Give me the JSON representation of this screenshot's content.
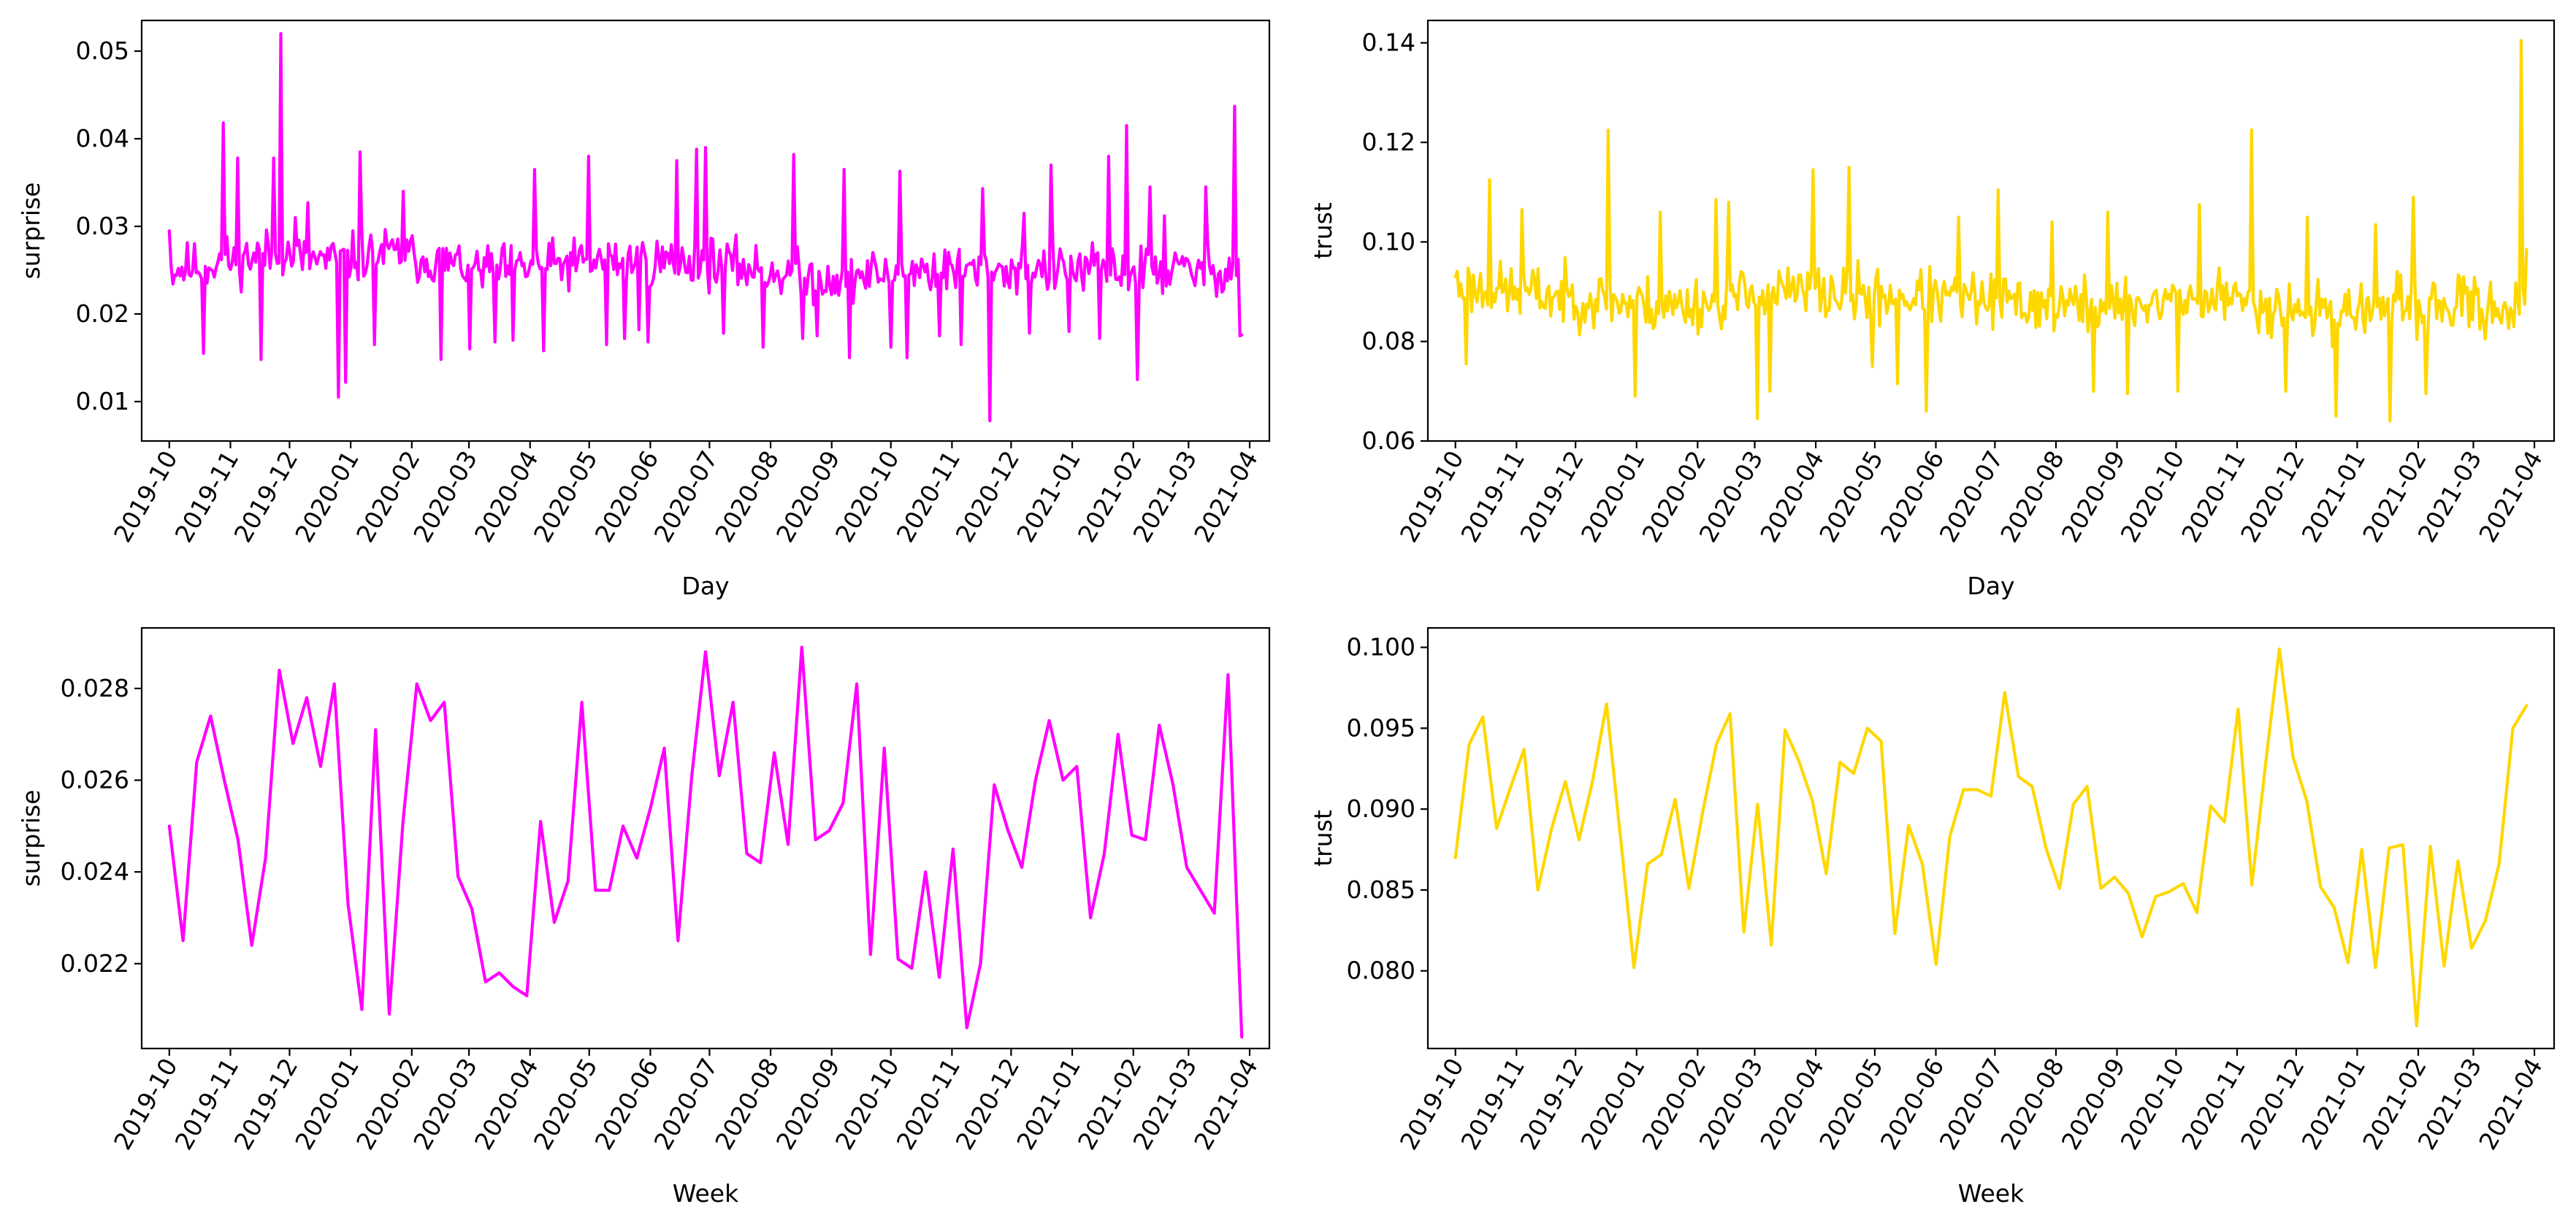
{
  "colors": {
    "surprise": "#ff00ff",
    "trust": "#ffd700"
  },
  "date_ticks": [
    "2019-10",
    "2019-11",
    "2019-12",
    "2020-01",
    "2020-02",
    "2020-03",
    "2020-04",
    "2020-05",
    "2020-06",
    "2020-07",
    "2020-08",
    "2020-09",
    "2020-10",
    "2020-11",
    "2020-12",
    "2021-01",
    "2021-02",
    "2021-03",
    "2021-04"
  ],
  "chart_data": [
    {
      "id": "daily-surprise",
      "type": "line",
      "xlabel": "Day",
      "ylabel": "surprise",
      "color_key": "surprise",
      "ylim": [
        0.0055,
        0.0535
      ],
      "yticks": [
        0.01,
        0.02,
        0.03,
        0.04,
        0.05
      ],
      "ytick_labels": [
        "0.01",
        "0.02",
        "0.03",
        "0.04",
        "0.05"
      ],
      "x_range": [
        "2019-10-01",
        "2021-03-28"
      ],
      "seed": 11,
      "base": [
        [
          0,
          0.025
        ],
        [
          60,
          0.027
        ],
        [
          90,
          0.026
        ],
        [
          120,
          0.027
        ],
        [
          180,
          0.025
        ],
        [
          240,
          0.026
        ],
        [
          300,
          0.026
        ],
        [
          360,
          0.024
        ],
        [
          420,
          0.025
        ],
        [
          545,
          0.025
        ]
      ],
      "noise": 0.0042,
      "peaks": [
        [
          0,
          0.0295
        ],
        [
          19,
          0.0155
        ],
        [
          30,
          0.0418
        ],
        [
          38,
          0.0378
        ],
        [
          51,
          0.0148
        ],
        [
          58,
          0.0378
        ],
        [
          62,
          0.052
        ],
        [
          70,
          0.031
        ],
        [
          77,
          0.0327
        ],
        [
          94,
          0.0105
        ],
        [
          98,
          0.0122
        ],
        [
          106,
          0.0385
        ],
        [
          114,
          0.0165
        ],
        [
          130,
          0.034
        ],
        [
          151,
          0.0148
        ],
        [
          167,
          0.016
        ],
        [
          181,
          0.0168
        ],
        [
          191,
          0.017
        ],
        [
          203,
          0.0365
        ],
        [
          208,
          0.0158
        ],
        [
          233,
          0.038
        ],
        [
          243,
          0.0165
        ],
        [
          253,
          0.0172
        ],
        [
          261,
          0.0182
        ],
        [
          266,
          0.0168
        ],
        [
          282,
          0.0375
        ],
        [
          293,
          0.0388
        ],
        [
          298,
          0.039
        ],
        [
          308,
          0.0178
        ],
        [
          330,
          0.0162
        ],
        [
          347,
          0.0382
        ],
        [
          352,
          0.0172
        ],
        [
          360,
          0.0175
        ],
        [
          375,
          0.0365
        ],
        [
          378,
          0.015
        ],
        [
          401,
          0.0162
        ],
        [
          406,
          0.0363
        ],
        [
          410,
          0.015
        ],
        [
          428,
          0.0175
        ],
        [
          440,
          0.0165
        ],
        [
          452,
          0.0343
        ],
        [
          456,
          0.0078
        ],
        [
          475,
          0.0315
        ],
        [
          478,
          0.0178
        ],
        [
          490,
          0.037
        ],
        [
          500,
          0.018
        ],
        [
          517,
          0.0172
        ],
        [
          522,
          0.038
        ],
        [
          532,
          0.0415
        ],
        [
          538,
          0.0125
        ],
        [
          545,
          0.0345
        ],
        [
          553,
          0.0312
        ],
        [
          576,
          0.0345
        ],
        [
          592,
          0.0437
        ],
        [
          595,
          0.0175
        ],
        [
          596,
          0.0176
        ]
      ],
      "n": 597
    },
    {
      "id": "daily-trust",
      "type": "line",
      "xlabel": "Day",
      "ylabel": "trust",
      "color_key": "trust",
      "ylim": [
        0.06,
        0.1445
      ],
      "yticks": [
        0.06,
        0.08,
        0.1,
        0.12,
        0.14
      ],
      "ytick_labels": [
        "0.06",
        "0.08",
        "0.10",
        "0.12",
        "0.14"
      ],
      "x_range": [
        "2019-10-01",
        "2021-03-28"
      ],
      "seed": 23,
      "base": [
        [
          0,
          0.091
        ],
        [
          60,
          0.089
        ],
        [
          120,
          0.087
        ],
        [
          180,
          0.09
        ],
        [
          240,
          0.089
        ],
        [
          300,
          0.088
        ],
        [
          360,
          0.087
        ],
        [
          420,
          0.089
        ],
        [
          480,
          0.086
        ],
        [
          545,
          0.087
        ]
      ],
      "noise": 0.0085,
      "peaks": [
        [
          0,
          0.093
        ],
        [
          6,
          0.0755
        ],
        [
          19,
          0.1125
        ],
        [
          37,
          0.1065
        ],
        [
          85,
          0.1225
        ],
        [
          100,
          0.069
        ],
        [
          114,
          0.106
        ],
        [
          145,
          0.1085
        ],
        [
          152,
          0.108
        ],
        [
          168,
          0.0645
        ],
        [
          175,
          0.07
        ],
        [
          199,
          0.1145
        ],
        [
          219,
          0.115
        ],
        [
          232,
          0.075
        ],
        [
          246,
          0.0715
        ],
        [
          262,
          0.066
        ],
        [
          280,
          0.105
        ],
        [
          302,
          0.1105
        ],
        [
          332,
          0.104
        ],
        [
          355,
          0.07
        ],
        [
          363,
          0.106
        ],
        [
          374,
          0.0695
        ],
        [
          402,
          0.07
        ],
        [
          414,
          0.1075
        ],
        [
          443,
          0.1225
        ],
        [
          462,
          0.07
        ],
        [
          474,
          0.105
        ],
        [
          490,
          0.065
        ],
        [
          512,
          0.1035
        ],
        [
          520,
          0.064
        ],
        [
          533,
          0.109
        ],
        [
          540,
          0.0695
        ],
        [
          568,
          0.0895
        ],
        [
          593,
          0.1405
        ],
        [
          596,
          0.0985
        ]
      ],
      "n": 597
    },
    {
      "id": "weekly-surprise",
      "type": "line",
      "xlabel": "Week",
      "ylabel": "surprise",
      "color_key": "surprise",
      "ylim": [
        0.02015,
        0.02932
      ],
      "yticks": [
        0.022,
        0.024,
        0.026,
        0.028
      ],
      "ytick_labels": [
        "0.022",
        "0.024",
        "0.026",
        "0.028"
      ],
      "x_range": [
        "2019-10-01",
        "2021-03-28"
      ],
      "values": [
        0.025,
        0.0225,
        0.0264,
        0.0274,
        0.026,
        0.0247,
        0.0224,
        0.0243,
        0.0284,
        0.0268,
        0.0278,
        0.0263,
        0.0281,
        0.0233,
        0.021,
        0.0271,
        0.0209,
        0.0251,
        0.0281,
        0.0273,
        0.0277,
        0.0239,
        0.0232,
        0.0216,
        0.0218,
        0.0215,
        0.0213,
        0.0251,
        0.0229,
        0.0238,
        0.0277,
        0.0236,
        0.0236,
        0.025,
        0.0243,
        0.0254,
        0.0267,
        0.0225,
        0.0261,
        0.0288,
        0.0261,
        0.0277,
        0.0244,
        0.0242,
        0.0266,
        0.0246,
        0.0289,
        0.0247,
        0.0249,
        0.0255,
        0.0281,
        0.0222,
        0.0267,
        0.0221,
        0.0219,
        0.024,
        0.0217,
        0.0245,
        0.0206,
        0.022,
        0.0259,
        0.0249,
        0.0241,
        0.026,
        0.0273,
        0.026,
        0.0263,
        0.023,
        0.0244,
        0.027,
        0.0248,
        0.0247,
        0.0272,
        0.0259,
        0.0241,
        0.0236,
        0.0231,
        0.0283,
        0.0204
      ]
    },
    {
      "id": "weekly-trust",
      "type": "line",
      "xlabel": "Week",
      "ylabel": "trust",
      "color_key": "trust",
      "ylim": [
        0.0752,
        0.1012
      ],
      "yticks": [
        0.08,
        0.085,
        0.09,
        0.095,
        0.1
      ],
      "ytick_labels": [
        "0.080",
        "0.085",
        "0.090",
        "0.095",
        "0.100"
      ],
      "x_range": [
        "2019-10-01",
        "2021-03-28"
      ],
      "values": [
        0.087,
        0.094,
        0.0957,
        0.0888,
        0.0913,
        0.0937,
        0.085,
        0.0888,
        0.0917,
        0.0881,
        0.0918,
        0.0965,
        0.0884,
        0.0802,
        0.0866,
        0.0872,
        0.0906,
        0.0851,
        0.0898,
        0.094,
        0.0959,
        0.0824,
        0.0903,
        0.0816,
        0.0949,
        0.093,
        0.0905,
        0.086,
        0.0929,
        0.0922,
        0.095,
        0.0942,
        0.0823,
        0.089,
        0.0866,
        0.0804,
        0.0883,
        0.0912,
        0.0912,
        0.0908,
        0.0972,
        0.092,
        0.0914,
        0.0876,
        0.0851,
        0.0903,
        0.0914,
        0.0851,
        0.0858,
        0.0848,
        0.0821,
        0.0846,
        0.0849,
        0.0854,
        0.0836,
        0.0902,
        0.0892,
        0.0962,
        0.0853,
        0.0928,
        0.0999,
        0.0932,
        0.0905,
        0.0852,
        0.0839,
        0.0805,
        0.0875,
        0.0802,
        0.0876,
        0.0878,
        0.0766,
        0.0877,
        0.0803,
        0.0868,
        0.0814,
        0.0831,
        0.0866,
        0.095,
        0.0964
      ]
    }
  ]
}
